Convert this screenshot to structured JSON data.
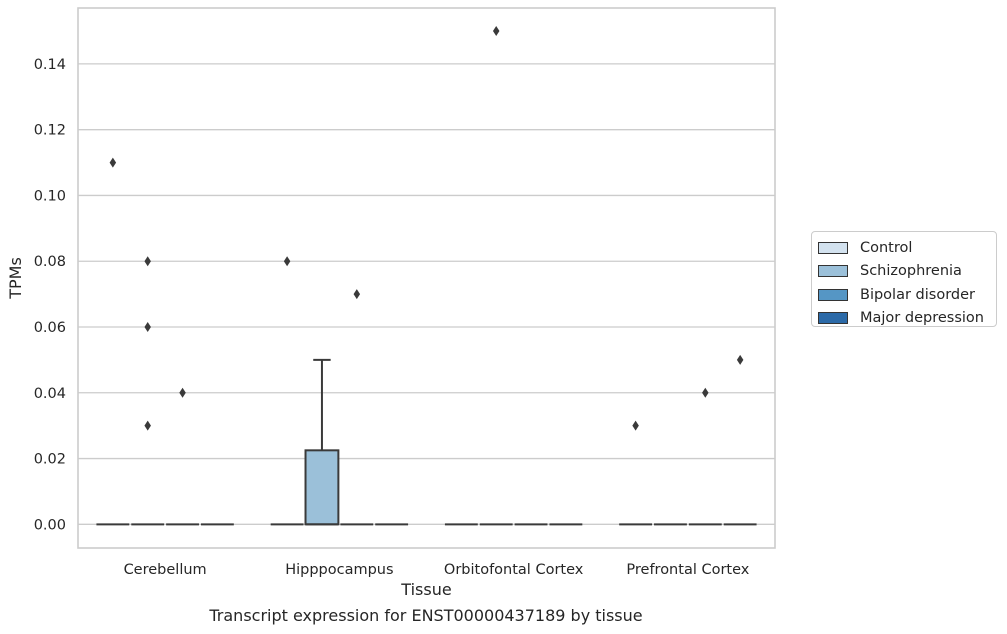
{
  "chart_data": {
    "type": "box",
    "title": "",
    "caption": "Transcript expression for ENST00000437189 by tissue",
    "xlabel": "Tissue",
    "ylabel": "TPMs",
    "ylim": [
      -0.0072,
      0.157
    ],
    "yticks": [
      0.0,
      0.02,
      0.04,
      0.06,
      0.08,
      0.1,
      0.12,
      0.14
    ],
    "ytick_labels": [
      "0.00",
      "0.02",
      "0.04",
      "0.06",
      "0.08",
      "0.10",
      "0.12",
      "0.14"
    ],
    "grid": "horizontal",
    "legend_placement": "right",
    "categories": [
      "Cerebellum",
      "Hipppocampus",
      "Orbitofontal Cortex",
      "Prefrontal Cortex"
    ],
    "series": [
      {
        "name": "Control",
        "color": "#d3e2ef"
      },
      {
        "name": "Schizophrenia",
        "color": "#9bc0d9"
      },
      {
        "name": "Bipolar disorder",
        "color": "#5596c5"
      },
      {
        "name": "Major depression",
        "color": "#2c6aa8"
      }
    ],
    "boxes": [
      {
        "category": 0,
        "series": 0,
        "q1": 0,
        "median": 0,
        "q3": 0,
        "whisker_low": 0,
        "whisker_high": 0,
        "outliers": [
          0.11
        ]
      },
      {
        "category": 0,
        "series": 1,
        "q1": 0,
        "median": 0,
        "q3": 0,
        "whisker_low": 0,
        "whisker_high": 0,
        "outliers": [
          0.03,
          0.06,
          0.08
        ]
      },
      {
        "category": 0,
        "series": 2,
        "q1": 0,
        "median": 0,
        "q3": 0,
        "whisker_low": 0,
        "whisker_high": 0,
        "outliers": [
          0.04
        ]
      },
      {
        "category": 0,
        "series": 3,
        "q1": 0,
        "median": 0,
        "q3": 0,
        "whisker_low": 0,
        "whisker_high": 0,
        "outliers": []
      },
      {
        "category": 1,
        "series": 0,
        "q1": 0,
        "median": 0,
        "q3": 0,
        "whisker_low": 0,
        "whisker_high": 0,
        "outliers": [
          0.08
        ]
      },
      {
        "category": 1,
        "series": 1,
        "q1": 0,
        "median": 0,
        "q3": 0.0225,
        "whisker_low": 0,
        "whisker_high": 0.05,
        "outliers": []
      },
      {
        "category": 1,
        "series": 2,
        "q1": 0,
        "median": 0,
        "q3": 0,
        "whisker_low": 0,
        "whisker_high": 0,
        "outliers": [
          0.07
        ]
      },
      {
        "category": 1,
        "series": 3,
        "q1": 0,
        "median": 0,
        "q3": 0,
        "whisker_low": 0,
        "whisker_high": 0,
        "outliers": []
      },
      {
        "category": 2,
        "series": 0,
        "q1": 0,
        "median": 0,
        "q3": 0,
        "whisker_low": 0,
        "whisker_high": 0,
        "outliers": []
      },
      {
        "category": 2,
        "series": 1,
        "q1": 0,
        "median": 0,
        "q3": 0,
        "whisker_low": 0,
        "whisker_high": 0,
        "outliers": [
          0.15
        ]
      },
      {
        "category": 2,
        "series": 2,
        "q1": 0,
        "median": 0,
        "q3": 0,
        "whisker_low": 0,
        "whisker_high": 0,
        "outliers": []
      },
      {
        "category": 2,
        "series": 3,
        "q1": 0,
        "median": 0,
        "q3": 0,
        "whisker_low": 0,
        "whisker_high": 0,
        "outliers": []
      },
      {
        "category": 3,
        "series": 0,
        "q1": 0,
        "median": 0,
        "q3": 0,
        "whisker_low": 0,
        "whisker_high": 0,
        "outliers": [
          0.03
        ]
      },
      {
        "category": 3,
        "series": 1,
        "q1": 0,
        "median": 0,
        "q3": 0,
        "whisker_low": 0,
        "whisker_high": 0,
        "outliers": []
      },
      {
        "category": 3,
        "series": 2,
        "q1": 0,
        "median": 0,
        "q3": 0,
        "whisker_low": 0,
        "whisker_high": 0,
        "outliers": [
          0.04
        ]
      },
      {
        "category": 3,
        "series": 3,
        "q1": 0,
        "median": 0,
        "q3": 0,
        "whisker_low": 0,
        "whisker_high": 0,
        "outliers": [
          0.05
        ]
      }
    ]
  }
}
